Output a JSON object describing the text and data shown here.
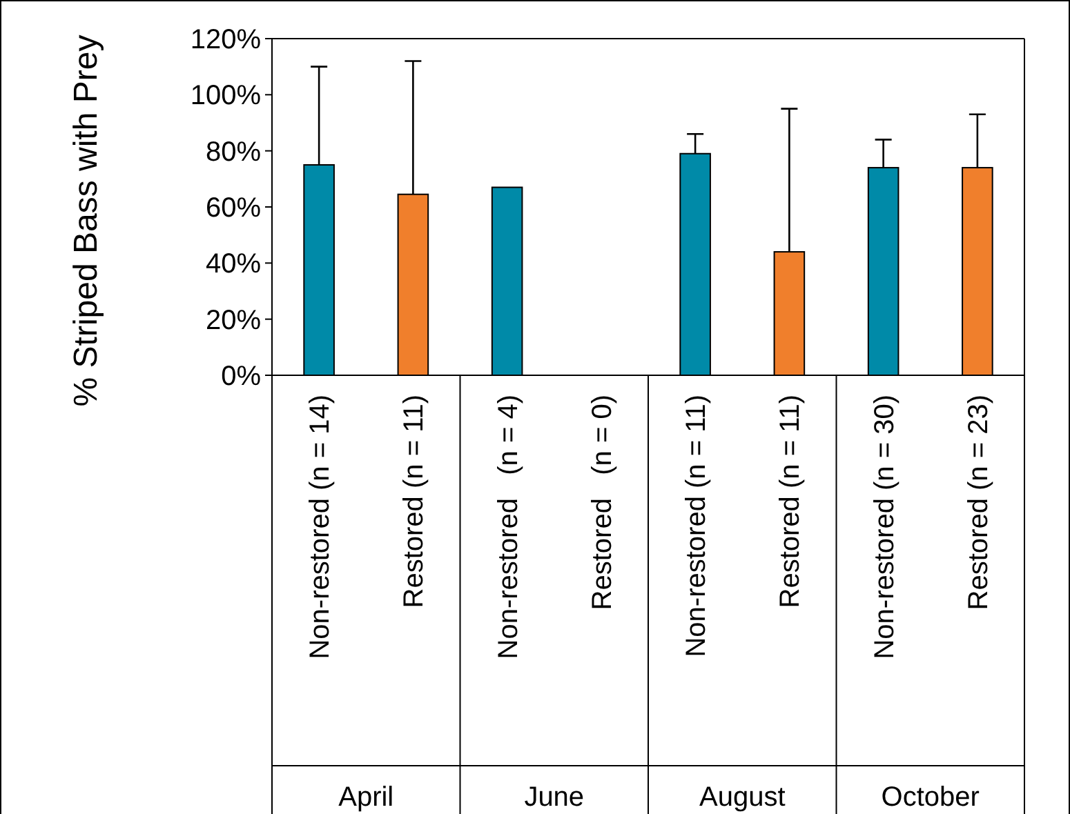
{
  "chart_data": {
    "type": "bar",
    "ylabel": "% Striped Bass with Prey",
    "categories": [
      "Non-restored (n = 14)",
      "Restored (n = 11)",
      "Non-restored   (n = 4)",
      "Restored   (n = 0)",
      "Non-restored (n = 11)",
      "Restored (n = 11)",
      "Non-restored (n = 30)",
      "Restored (n = 23)"
    ],
    "values": [
      75,
      64.5,
      67,
      null,
      79,
      44,
      74,
      74
    ],
    "colors": [
      "#008aa8",
      "#f07f2c",
      "#008aa8",
      null,
      "#008aa8",
      "#f07f2c",
      "#008aa8",
      "#f07f2c"
    ],
    "errors": [
      [
        75,
        110
      ],
      [
        64.5,
        112
      ],
      null,
      null,
      [
        79,
        86
      ],
      [
        44,
        95
      ],
      [
        74,
        84
      ],
      [
        74,
        93
      ]
    ],
    "annotations": [
      "April",
      "June",
      "August",
      "October"
    ],
    "ylim": [
      0,
      120
    ],
    "yticks": [
      {
        "value": 0,
        "label": "0%"
      },
      {
        "value": 20,
        "label": "20%"
      },
      {
        "value": 40,
        "label": "40%"
      },
      {
        "value": 60,
        "label": "60%"
      },
      {
        "value": 80,
        "label": "80%"
      },
      {
        "value": 100,
        "label": "100%"
      },
      {
        "value": 120,
        "label": "120%"
      }
    ],
    "grid": false
  }
}
